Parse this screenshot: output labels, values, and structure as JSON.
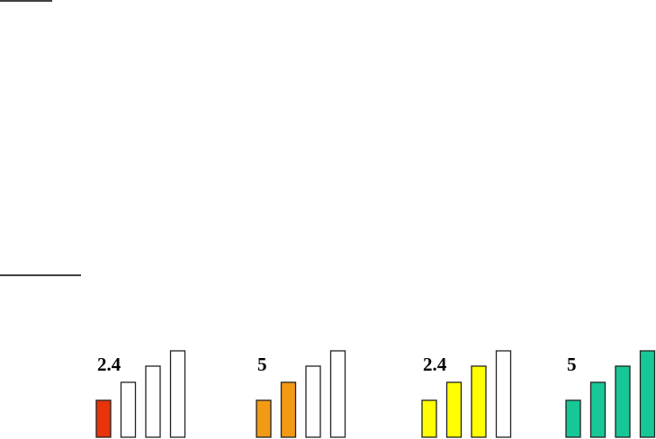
{
  "icons": [
    {
      "label": "2.4",
      "level": 1,
      "color": "#e8330b"
    },
    {
      "label": "5",
      "level": 2,
      "color": "#f29a14"
    },
    {
      "label": "2.4",
      "level": 3,
      "color": "#ffff00"
    },
    {
      "label": "5",
      "level": 4,
      "color": "#17c896"
    }
  ]
}
